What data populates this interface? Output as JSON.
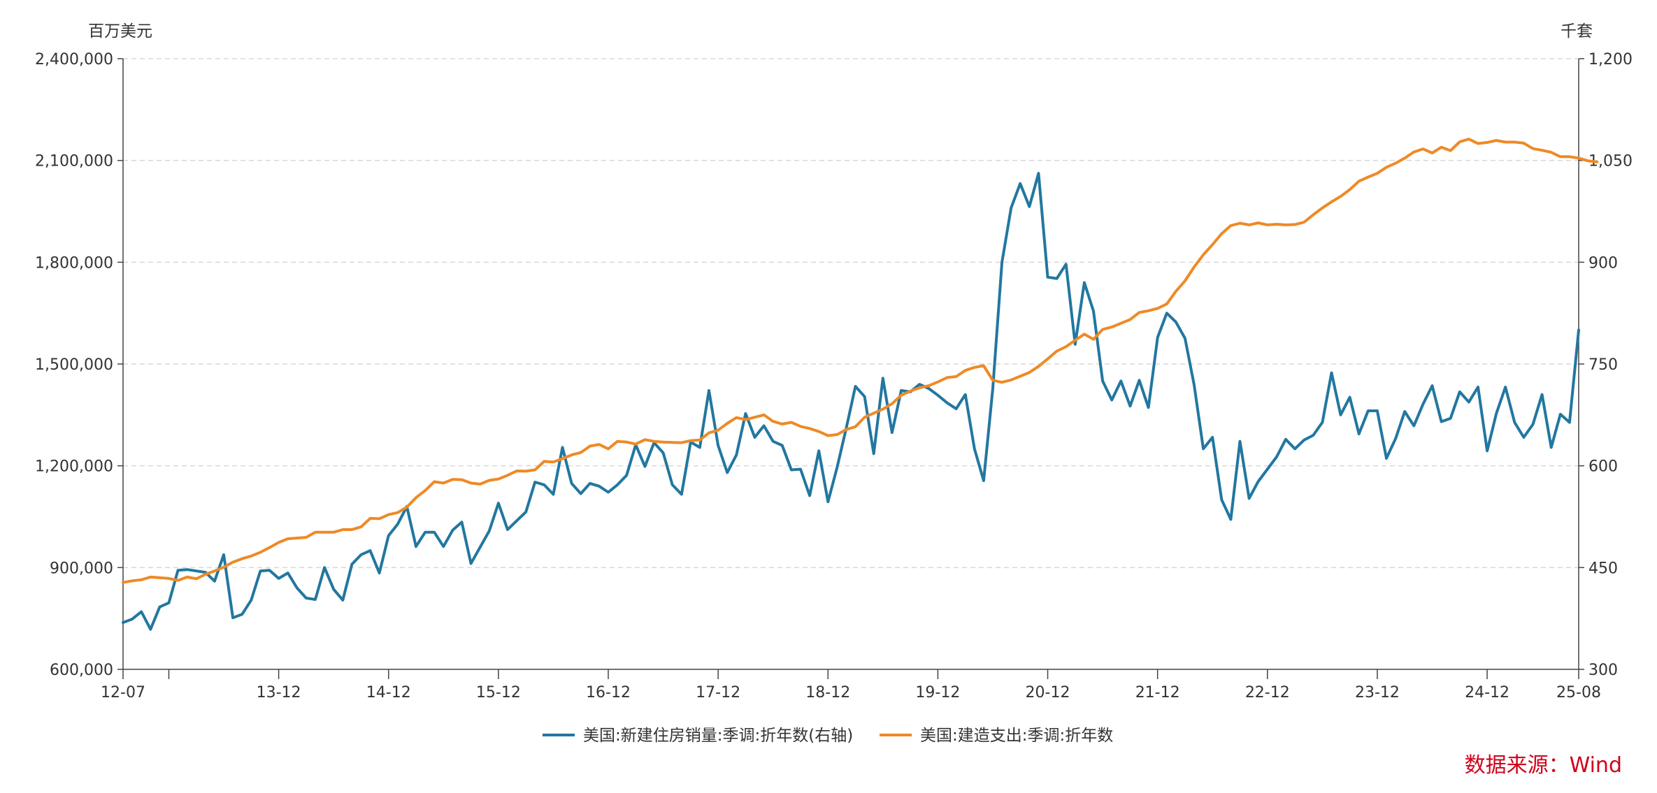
{
  "chart_data": {
    "type": "line",
    "left_unit": "百万美元",
    "right_unit": "千套",
    "x_ticks": [
      "12-07",
      "",
      "13-12",
      "14-12",
      "15-12",
      "16-12",
      "17-12",
      "18-12",
      "19-12",
      "20-12",
      "21-12",
      "22-12",
      "23-12",
      "24-12",
      "25-08"
    ],
    "y_left": {
      "min": 600000,
      "max": 2400000,
      "ticks": [
        "600,000",
        "900,000",
        "1,200,000",
        "1,500,000",
        "1,800,000",
        "2,100,000",
        "2,400,000"
      ]
    },
    "y_right": {
      "min": 300,
      "max": 1200,
      "ticks": [
        "300",
        "450",
        "600",
        "750",
        "900",
        "1,050",
        "1,200"
      ]
    },
    "grid": "horizontal dashed",
    "legend_position": "bottom-center",
    "series": [
      {
        "name": "美国:新建住房销量:季调:折年数(右轴)",
        "axis": "right",
        "color": "#2277a0",
        "start": "2012-07",
        "values": [
          369,
          374,
          385,
          359,
          392,
          398,
          446,
          447,
          445,
          443,
          430,
          469,
          376,
          381,
          402,
          445,
          446,
          434,
          442,
          420,
          405,
          403,
          450,
          418,
          402,
          455,
          469,
          475,
          442,
          497,
          514,
          540,
          481,
          502,
          502,
          481,
          505,
          517,
          456,
          480,
          504,
          545,
          506,
          519,
          532,
          576,
          572,
          558,
          627,
          574,
          559,
          574,
          570,
          561,
          572,
          586,
          631,
          599,
          634,
          619,
          572,
          558,
          635,
          627,
          711,
          630,
          590,
          616,
          677,
          642,
          659,
          636,
          630,
          594,
          595,
          556,
          622,
          547,
          598,
          656,
          717,
          702,
          618,
          729,
          649,
          711,
          709,
          720,
          714,
          704,
          693,
          684,
          705,
          625,
          578,
          714,
          900,
          980,
          1016,
          982,
          1031,
          878,
          876,
          897,
          779,
          870,
          828,
          725,
          697,
          725,
          688,
          726,
          686,
          789,
          825,
          812,
          788,
          719,
          625,
          642,
          550,
          521,
          636,
          552,
          577,
          595,
          613,
          639,
          625,
          638,
          645,
          664,
          737,
          675,
          701,
          647,
          681,
          681,
          611,
          640,
          680,
          659,
          691,
          718,
          665,
          670,
          709,
          694,
          716,
          622,
          677,
          716,
          664,
          642,
          661,
          705,
          627,
          676,
          664,
          800
        ]
      },
      {
        "name": "美国:建造支出:季调:折年数",
        "axis": "left",
        "color": "#ee8a26",
        "start": "2012-07",
        "values": [
          856000,
          861000,
          864000,
          872000,
          870000,
          868000,
          862000,
          872000,
          867000,
          880000,
          890000,
          901000,
          916000,
          926000,
          934000,
          945000,
          959000,
          974000,
          985000,
          987000,
          989000,
          1004000,
          1004000,
          1004000,
          1012000,
          1012000,
          1020000,
          1045000,
          1044000,
          1056000,
          1062000,
          1078000,
          1106000,
          1127000,
          1153000,
          1149000,
          1160000,
          1159000,
          1149000,
          1146000,
          1157000,
          1161000,
          1172000,
          1185000,
          1184000,
          1188000,
          1213000,
          1211000,
          1221000,
          1232000,
          1239000,
          1258000,
          1263000,
          1250000,
          1272000,
          1270000,
          1264000,
          1277000,
          1272000,
          1270000,
          1269000,
          1268000,
          1274000,
          1276000,
          1297000,
          1305000,
          1325000,
          1342000,
          1336000,
          1343000,
          1350000,
          1331000,
          1323000,
          1328000,
          1316000,
          1310000,
          1301000,
          1289000,
          1292000,
          1307000,
          1315000,
          1343000,
          1355000,
          1367000,
          1383000,
          1408000,
          1420000,
          1430000,
          1436000,
          1447000,
          1460000,
          1463000,
          1481000,
          1490000,
          1495000,
          1452000,
          1446000,
          1453000,
          1464000,
          1475000,
          1493000,
          1515000,
          1538000,
          1551000,
          1570000,
          1588000,
          1573000,
          1602000,
          1609000,
          1620000,
          1631000,
          1652000,
          1657000,
          1664000,
          1677000,
          1714000,
          1745000,
          1786000,
          1822000,
          1852000,
          1884000,
          1908000,
          1915000,
          1910000,
          1916000,
          1910000,
          1912000,
          1910000,
          1911000,
          1918000,
          1940000,
          1960000,
          1978000,
          1994000,
          2014000,
          2039000,
          2051000,
          2062000,
          2080000,
          2092000,
          2107000,
          2125000,
          2134000,
          2122000,
          2139000,
          2129000,
          2155000,
          2163000,
          2150000,
          2153000,
          2159000,
          2154000,
          2154000,
          2151000,
          2135000,
          2130000,
          2124000,
          2111000,
          2111000,
          2107000,
          2099000,
          2096000
        ]
      }
    ]
  },
  "source": "数据来源：Wind"
}
